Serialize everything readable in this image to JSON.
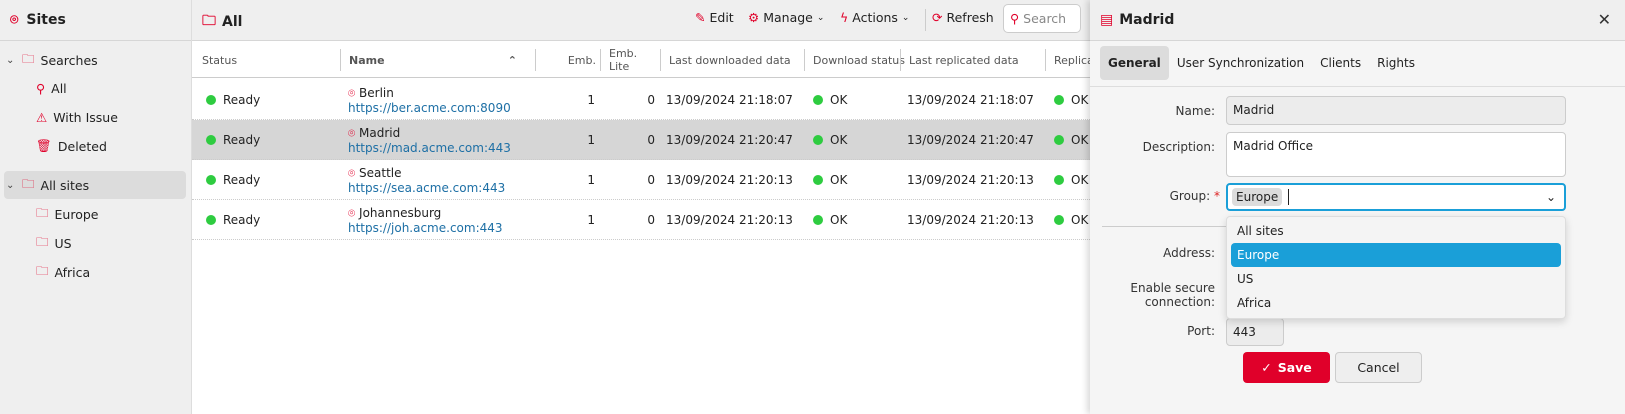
{
  "sidebar": {
    "title": "Sites",
    "searches_label": "Searches",
    "search_items": [
      {
        "label": "All",
        "icon": "search-icon"
      },
      {
        "label": "With Issue",
        "icon": "warning-icon"
      },
      {
        "label": "Deleted",
        "icon": "trash-icon"
      }
    ],
    "all_sites_label": "All sites",
    "groups": [
      "Europe",
      "US",
      "Africa"
    ]
  },
  "main": {
    "title": "All",
    "toolbar": {
      "edit": "Edit",
      "manage": "Manage",
      "actions": "Actions",
      "refresh": "Refresh",
      "search_placeholder": "Search"
    },
    "columns": [
      "Status",
      "Name",
      "Emb.",
      "Emb. Lite",
      "Last downloaded data",
      "Download status",
      "Last replicated data",
      "Replicat"
    ],
    "rows": [
      {
        "status": "Ready",
        "name": "Berlin",
        "url": "https://ber.acme.com:8090",
        "emb": "1",
        "emb_lite": "0",
        "last_downloaded": "13/09/2024 21:18:07",
        "download_status": "OK",
        "last_replicated": "13/09/2024 21:18:07",
        "replication": "OK"
      },
      {
        "status": "Ready",
        "name": "Madrid",
        "url": "https://mad.acme.com:443",
        "emb": "1",
        "emb_lite": "0",
        "last_downloaded": "13/09/2024 21:20:47",
        "download_status": "OK",
        "last_replicated": "13/09/2024 21:20:47",
        "replication": "OK"
      },
      {
        "status": "Ready",
        "name": "Seattle",
        "url": "https://sea.acme.com:443",
        "emb": "1",
        "emb_lite": "0",
        "last_downloaded": "13/09/2024 21:20:13",
        "download_status": "OK",
        "last_replicated": "13/09/2024 21:20:13",
        "replication": "OK"
      },
      {
        "status": "Ready",
        "name": "Johannesburg",
        "url": "https://joh.acme.com:443",
        "emb": "1",
        "emb_lite": "0",
        "last_downloaded": "13/09/2024 21:20:13",
        "download_status": "OK",
        "last_replicated": "13/09/2024 21:20:13",
        "replication": "OK"
      }
    ]
  },
  "panel": {
    "title": "Madrid",
    "tabs": [
      "General",
      "User Synchronization",
      "Clients",
      "Rights"
    ],
    "fields": {
      "name_label": "Name:",
      "name_value": "Madrid",
      "description_label": "Description:",
      "description_value": "Madrid Office",
      "group_label": "Group:",
      "group_required": "*",
      "group_value": "Europe",
      "address_label": "Address:",
      "secure_label_1": "Enable secure",
      "secure_label_2": "connection:",
      "port_label": "Port:",
      "port_value": "443"
    },
    "dropdown_options": [
      "All sites",
      "Europe",
      "US",
      "Africa"
    ],
    "save": "Save",
    "cancel": "Cancel"
  },
  "colors": {
    "accent": "#e0002a",
    "highlight": "#1a9fd8",
    "status_ok": "#2ecc40",
    "link": "#1d6fa5"
  }
}
